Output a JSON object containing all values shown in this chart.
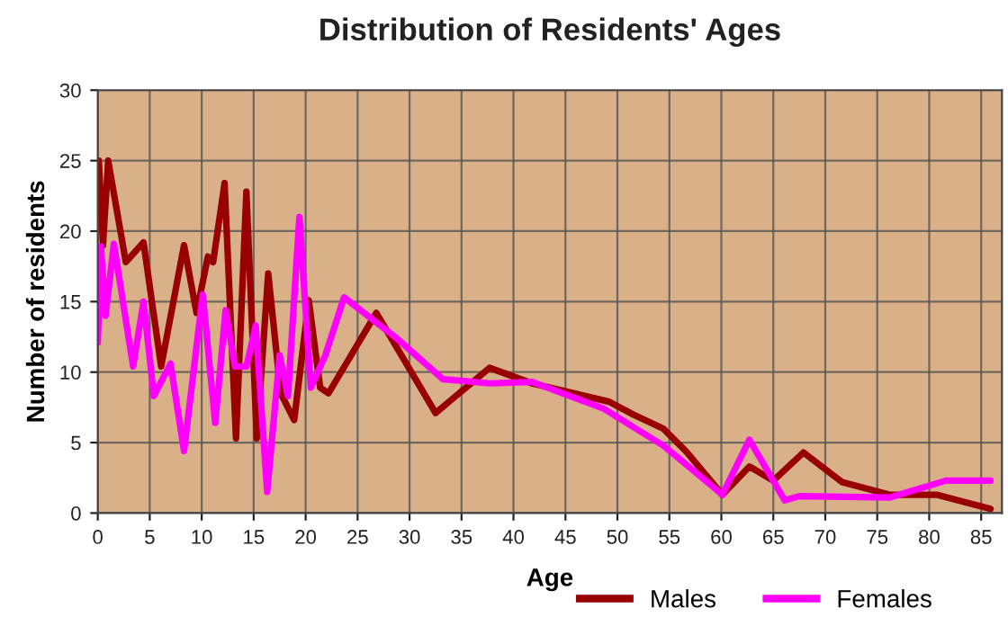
{
  "chart_data": {
    "type": "line",
    "title": "Distribution of Residents' Ages",
    "xlabel": "Age",
    "ylabel": "Number of residents",
    "xlim": [
      0,
      87
    ],
    "ylim": [
      0,
      30
    ],
    "xticks": [
      0,
      5,
      10,
      15,
      20,
      25,
      30,
      35,
      40,
      45,
      50,
      55,
      60,
      65,
      70,
      75,
      80,
      85
    ],
    "yticks": [
      0,
      5,
      10,
      15,
      20,
      25,
      30
    ],
    "grid": true,
    "legend": "bottom",
    "series": [
      {
        "name": "Males",
        "color": "#990000",
        "x": [
          0.1,
          0.5,
          1,
          2.7,
          4.4,
          6.1,
          8.3,
          9.5,
          10.6,
          11.1,
          12.2,
          13.3,
          14.3,
          15.3,
          16.4,
          17.6,
          18.9,
          20.3,
          21.4,
          22.2,
          26.8,
          32.5,
          37.7,
          41.8,
          49.2,
          51.5,
          54.4,
          56.7,
          60.1,
          62.7,
          65,
          67.9,
          71.6,
          76.2,
          80.7,
          85.9
        ],
        "values": [
          25,
          19,
          25,
          17.8,
          19.2,
          10.4,
          19,
          14.2,
          18.2,
          17.8,
          23.4,
          5.3,
          22.8,
          5.3,
          17,
          8.5,
          6.6,
          15.1,
          8.9,
          8.5,
          14.2,
          7.1,
          10.3,
          9.2,
          7.9,
          7,
          6,
          4.3,
          1.3,
          3.3,
          2.3,
          4.3,
          2.2,
          1.3,
          1.3,
          0.3
        ]
      },
      {
        "name": "Females",
        "color": "#ff00ff",
        "x": [
          0,
          0.3,
          0.75,
          1.55,
          3.4,
          4.4,
          5.4,
          7,
          8.3,
          10.1,
          11.3,
          12.3,
          13.2,
          14.3,
          15.2,
          16.3,
          17.5,
          18.3,
          19.4,
          20.5,
          21.9,
          23.7,
          28.6,
          33.2,
          37.7,
          41.8,
          48.7,
          54.4,
          56.7,
          60.1,
          62.7,
          66.1,
          67.5,
          76.2,
          81.6,
          85.9
        ],
        "values": [
          12.1,
          18.9,
          14,
          19.1,
          10.4,
          15,
          8.3,
          10.6,
          4.4,
          15.5,
          6.4,
          14.4,
          10.4,
          10.4,
          13.3,
          1.5,
          11.2,
          8.3,
          21,
          8.9,
          11.2,
          15.3,
          12.5,
          9.5,
          9.2,
          9.3,
          7.4,
          4.8,
          3.4,
          1.3,
          5.2,
          0.9,
          1.2,
          1.1,
          2.3,
          2.3
        ]
      }
    ]
  }
}
